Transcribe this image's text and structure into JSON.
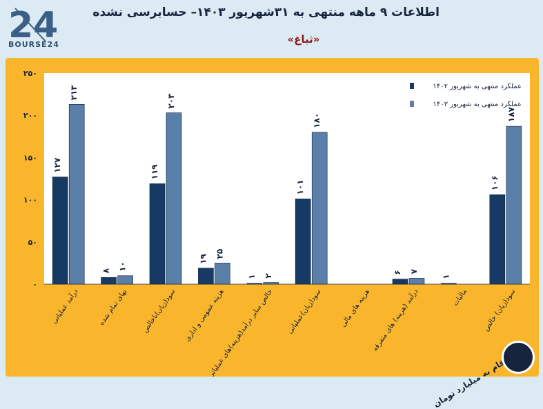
{
  "header": {
    "title": "اطلاعات ۹ ماهه منتهی به ۳۱شهریور ۱۴۰۳– حسابرسی نشده",
    "subtitle": "«ثباغ»",
    "logo_text": "BOURSE24",
    "note": "ارقام به میلیارد تومان"
  },
  "colors": {
    "background": "#dbeaf3",
    "panel": "#f9b52b",
    "plot": "#ffffff",
    "series1": "#163a63",
    "series2": "#5a7fa8",
    "text": "#17243d"
  },
  "chart_data": {
    "type": "bar",
    "title": "اطلاعات ۹ ماهه منتهی به ۳۱شهریور ۱۴۰۳– حسابرسی نشده",
    "ylim": [
      0,
      250
    ],
    "yticks": [
      "۰",
      "۵۰",
      "۱۰۰",
      "۱۵۰",
      "۲۰۰",
      "۲۵۰"
    ],
    "ytick_values": [
      0,
      50,
      100,
      150,
      200,
      250
    ],
    "grid": false,
    "legend_position": "top-right",
    "categories": [
      "درآمد عملیاتی",
      "بهای تمام شده",
      "سود(زیان)ناخالص",
      "هزینه عمومی و اداری",
      "خالص سایر درآمد(هزینه)های عملیاتی",
      "سود(زیان)عملیاتی",
      "هزینه های مالی",
      "درآمد (هزینه) های متفرقه",
      "مالیات",
      "سود(زیان) خالص"
    ],
    "series": [
      {
        "name": "عملکرد منتهی به شهریور ۱۴۰۲",
        "values": [
          127,
          8,
          119,
          19,
          1,
          101,
          null,
          6,
          1,
          106
        ],
        "labels": [
          "۱۲۷",
          "۸",
          "۱۱۹",
          "۱۹",
          "۱",
          "۱۰۱",
          "",
          "۶",
          "۱",
          "۱۰۶"
        ]
      },
      {
        "name": "عملکرد منتهی به شهریور ۱۴۰۳",
        "values": [
          213,
          10,
          203,
          25,
          2,
          180,
          null,
          7,
          null,
          187
        ],
        "labels": [
          "۲۱۳",
          "۱۰",
          "۲۰۳",
          "۲۵",
          "۲",
          "۱۸۰",
          "",
          "۷",
          "",
          "۱۸۷"
        ]
      }
    ]
  }
}
